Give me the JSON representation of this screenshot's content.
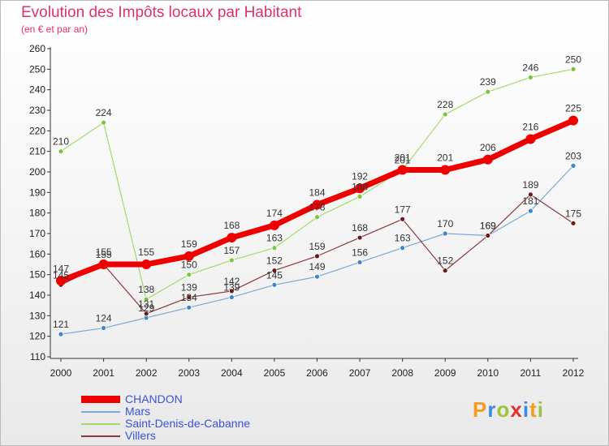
{
  "header": {
    "title": "Evolution des Impôts locaux par Habitant",
    "subtitle": "(en € et par an)"
  },
  "logo": {
    "letters": [
      "P",
      "r",
      "o",
      "x",
      "i",
      "t",
      "i"
    ],
    "colors": [
      "#f29d1f",
      "#3b8be0",
      "#9ac43c",
      "#e03030",
      "#3b8be0",
      "#f29d1f",
      "#9ac43c"
    ]
  },
  "chart_data": {
    "type": "line",
    "title": "Evolution des Impôts locaux par Habitant",
    "subtitle": "(en € et par an)",
    "xlabel": "",
    "ylabel": "",
    "ylim": [
      110,
      260
    ],
    "ytick_step": 10,
    "grid": false,
    "legend_position": "bottom-left",
    "categories": [
      "2000",
      "2001",
      "2002",
      "2003",
      "2004",
      "2005",
      "2006",
      "2007",
      "2008",
      "2009",
      "2010",
      "2011",
      "2012"
    ],
    "series": [
      {
        "name": "CHANDON",
        "color": "#ee0000",
        "marker_color": "#ee0000",
        "width": 7,
        "marker": 6,
        "values": [
          147,
          155,
          155,
          159,
          168,
          174,
          184,
          192,
          201,
          201,
          206,
          216,
          225
        ],
        "labels": [
          "147",
          "155",
          "155",
          "159",
          "168",
          "174",
          "184",
          "192",
          "201",
          "201",
          "206",
          "216",
          "225"
        ]
      },
      {
        "name": "Mars",
        "color": "#7aaad6",
        "marker_color": "#3f85c8",
        "width": 1.2,
        "marker": 3,
        "values": [
          121,
          124,
          129,
          134,
          139,
          145,
          149,
          156,
          163,
          170,
          169,
          181,
          203
        ],
        "labels": [
          "121",
          "124",
          "129",
          "134",
          "139",
          "145",
          "149",
          "156",
          "163",
          "170",
          "169",
          "181",
          "203"
        ]
      },
      {
        "name": "Saint-Denis-de-Cabanne",
        "color": "#a4da6a",
        "marker_color": "#7cc440",
        "width": 1.2,
        "marker": 3,
        "values": [
          210,
          224,
          138,
          150,
          157,
          163,
          178,
          188,
          201,
          228,
          239,
          246,
          250
        ],
        "labels": [
          "210",
          "224",
          "138",
          "150",
          "157",
          "163",
          "178",
          "188",
          "201",
          "228",
          "239",
          "246",
          "250"
        ]
      },
      {
        "name": "Villers",
        "color": "#8a3a3a",
        "marker_color": "#6e1818",
        "width": 1.2,
        "marker": 3,
        "values": [
          145,
          155,
          131,
          139,
          142,
          152,
          159,
          168,
          177,
          152,
          169,
          189,
          175
        ],
        "labels": [
          "145",
          "155",
          "131",
          "139",
          "142",
          "152",
          "159",
          "168",
          "177",
          "152",
          "169",
          "189",
          "175"
        ]
      }
    ]
  }
}
